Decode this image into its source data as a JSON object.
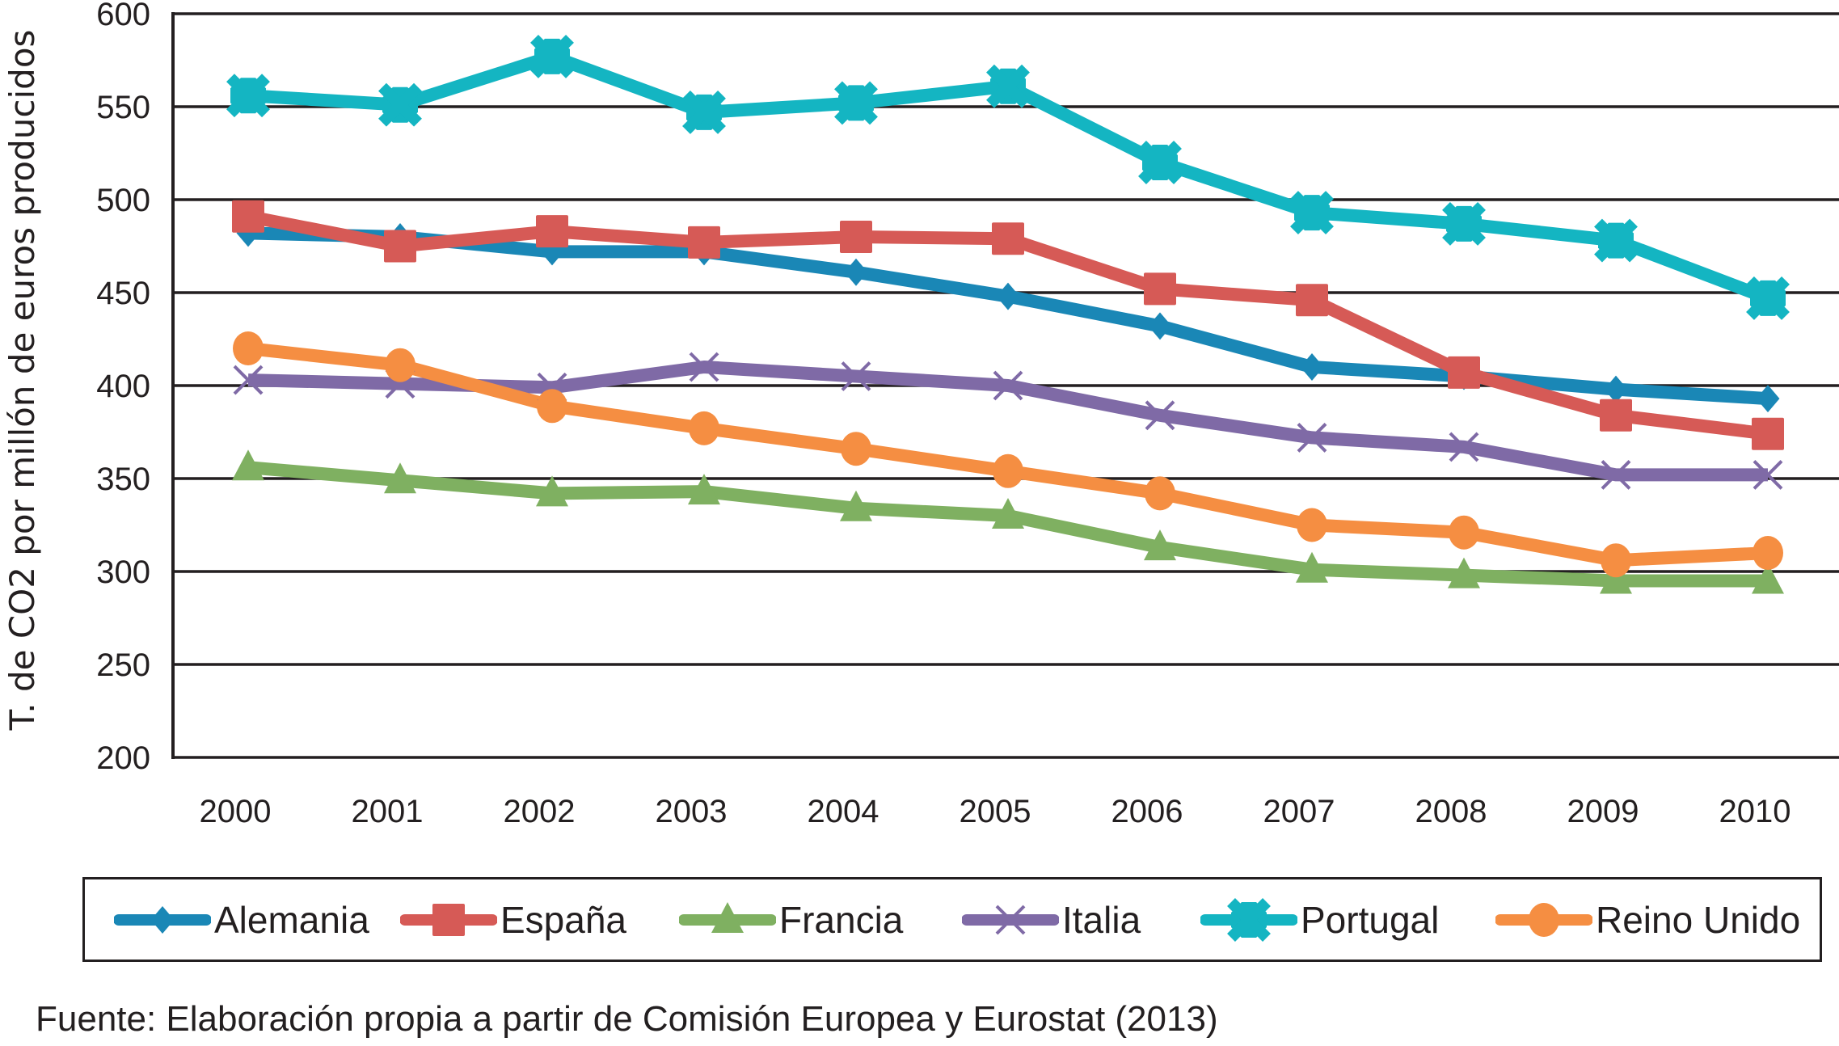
{
  "chart_data": {
    "type": "line",
    "title": "",
    "xlabel": "",
    "ylabel": "T. de CO2 por millón de euros producidos",
    "x": [
      "2000",
      "2001",
      "2002",
      "2003",
      "2004",
      "2005",
      "2006",
      "2007",
      "2008",
      "2009",
      "2010"
    ],
    "ylim": [
      200,
      600
    ],
    "yticks": [
      200,
      250,
      300,
      350,
      400,
      450,
      500,
      550,
      600
    ],
    "ytick_labels": [
      "200",
      "250",
      "300",
      "350",
      "400",
      "450",
      "500",
      "550",
      "600"
    ],
    "grid": true,
    "legend_position": "bottom",
    "series": [
      {
        "name": "Alemania",
        "color": "#1a87b6",
        "marker": "diamond",
        "values": [
          482,
          480,
          472,
          472,
          461,
          448,
          432,
          410,
          405,
          398,
          393
        ]
      },
      {
        "name": "España",
        "color": "#d65a56",
        "marker": "square",
        "values": [
          491,
          475,
          483,
          477,
          480,
          479,
          452,
          446,
          407,
          384,
          374
        ]
      },
      {
        "name": "Francia",
        "color": "#7fb061",
        "marker": "triangle",
        "values": [
          356,
          349,
          342,
          343,
          334,
          330,
          313,
          301,
          298,
          295,
          295
        ]
      },
      {
        "name": "Italia",
        "color": "#7f6aa6",
        "marker": "x",
        "values": [
          403,
          401,
          399,
          410,
          405,
          400,
          384,
          372,
          367,
          352,
          352
        ]
      },
      {
        "name": "Portugal",
        "color": "#14b5c2",
        "marker": "star",
        "values": [
          556,
          551,
          577,
          547,
          552,
          561,
          520,
          493,
          487,
          478,
          447
        ]
      },
      {
        "name": "Reino Unido",
        "color": "#f58e42",
        "marker": "circle",
        "values": [
          420,
          411,
          389,
          377,
          366,
          354,
          342,
          325,
          321,
          306,
          310
        ]
      }
    ]
  },
  "source": "Fuente: Elaboración propia a partir de Comisión Europea y Eurostat (2013)"
}
